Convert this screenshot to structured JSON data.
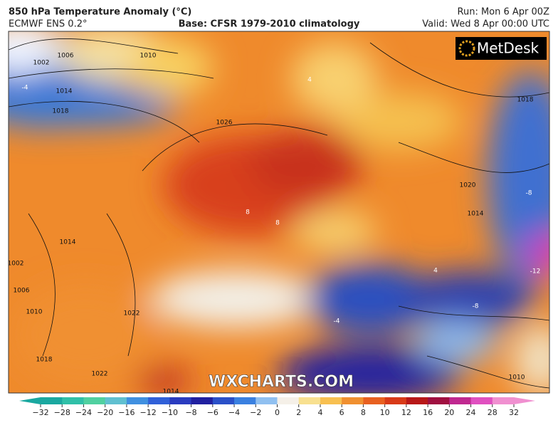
{
  "header": {
    "title": "850 hPa Temperature Anomaly (°C)",
    "model": "ECMWF ENS 0.2°",
    "base": "Base: CFSR 1979-2010 climatology",
    "run": "Run: Mon 6 Apr 00Z",
    "valid": "Valid: Wed 8 Apr 00:00 UTC"
  },
  "logo": "MetDesk",
  "watermark": "WXCHARTS.COM",
  "pressure_labels": [
    "1002",
    "1006",
    "1010",
    "1014",
    "1018",
    "1026",
    "1020",
    "1018",
    "1014",
    "1022",
    "1018",
    "1014",
    "1010",
    "1002",
    "1006",
    "1010",
    "1014",
    "1022"
  ],
  "anomaly_labels": [
    "-4",
    "8",
    "8",
    "-8",
    "-12",
    "-8",
    "4",
    "-4",
    "4"
  ],
  "colorbar": {
    "ticks": [
      {
        "value": -32,
        "label": "−32"
      },
      {
        "value": -28,
        "label": "−28"
      },
      {
        "value": -24,
        "label": "−24"
      },
      {
        "value": -20,
        "label": "−20"
      },
      {
        "value": -16,
        "label": "−16"
      },
      {
        "value": -12,
        "label": "−12"
      },
      {
        "value": -10,
        "label": "−10"
      },
      {
        "value": -8,
        "label": "−8"
      },
      {
        "value": -6,
        "label": "−6"
      },
      {
        "value": -4,
        "label": "−4"
      },
      {
        "value": -2,
        "label": "−2"
      },
      0,
      2,
      4,
      6,
      8,
      10,
      12,
      16,
      20,
      24,
      28,
      32
    ],
    "colors": [
      "#1aa8a0",
      "#30c0a8",
      "#50d0a0",
      "#60c0d0",
      "#4090e0",
      "#3060d8",
      "#2a3cc0",
      "#2020a0",
      "#2a50c8",
      "#3a80e0",
      "#90c0f0",
      "#f5f0e8",
      "#f8e090",
      "#f8c050",
      "#f09030",
      "#e86020",
      "#d83a18",
      "#b81818",
      "#a01040",
      "#c02890",
      "#e050c0",
      "#f090d0"
    ]
  }
}
